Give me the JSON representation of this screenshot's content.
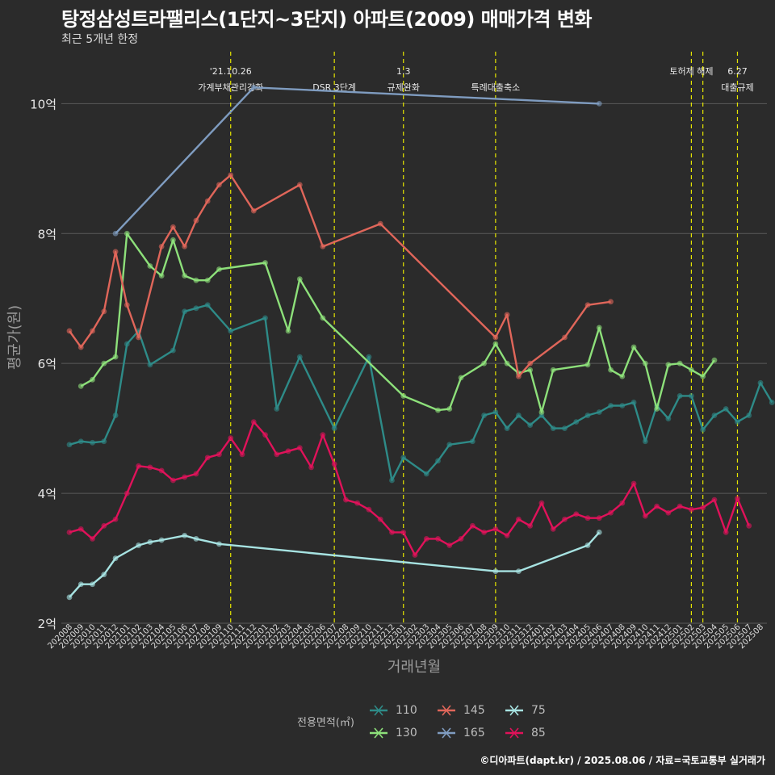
{
  "title": "탕정삼성트라팰리스(1단지~3단지) 아파트(2009) 매매가격 변화",
  "subtitle": "최근 5개년 한정",
  "caption": "©디아파트(dapt.kr) / 2025.08.06 / 자료=국토교통부 실거래가",
  "chart_data": {
    "type": "line",
    "xlabel": "거래년월",
    "ylabel": "평균가(원)",
    "ylim": [
      2.0,
      10.8
    ],
    "yticks": [
      {
        "v": 2,
        "label": "2억"
      },
      {
        "v": 4,
        "label": "4억"
      },
      {
        "v": 6,
        "label": "6억"
      },
      {
        "v": 8,
        "label": "8억"
      },
      {
        "v": 10,
        "label": "10억"
      }
    ],
    "x": [
      "202008",
      "202009",
      "202010",
      "202011",
      "202012",
      "202101",
      "202102",
      "202103",
      "202104",
      "202105",
      "202106",
      "202107",
      "202108",
      "202109",
      "202110",
      "202111",
      "202112",
      "202201",
      "202202",
      "202203",
      "202204",
      "202205",
      "202206",
      "202207",
      "202208",
      "202209",
      "202210",
      "202211",
      "202212",
      "202301",
      "202302",
      "202303",
      "202304",
      "202305",
      "202306",
      "202307",
      "202308",
      "202309",
      "202310",
      "202311",
      "202312",
      "202401",
      "202402",
      "202403",
      "202404",
      "202405",
      "202406",
      "202407",
      "202408",
      "202409",
      "202410",
      "202411",
      "202412",
      "202501",
      "202502",
      "202503",
      "202504",
      "202505",
      "202506",
      "202507",
      "202508"
    ],
    "legend_title": "전용면적(㎡)",
    "grid": true,
    "series": [
      {
        "name": "110",
        "color": "#2e8b88",
        "points": [
          [
            0,
            4.75
          ],
          [
            1,
            4.8
          ],
          [
            2,
            4.78
          ],
          [
            3,
            4.8
          ],
          [
            4,
            5.2
          ],
          [
            5,
            6.3
          ],
          [
            6,
            6.5
          ],
          [
            7,
            5.98
          ],
          [
            9,
            6.2
          ],
          [
            10,
            6.8
          ],
          [
            11,
            6.85
          ],
          [
            12,
            6.9
          ],
          [
            14,
            6.5
          ],
          [
            17,
            6.7
          ],
          [
            18,
            5.3
          ],
          [
            20,
            6.1
          ],
          [
            23,
            5.0
          ],
          [
            26,
            6.1
          ],
          [
            28,
            4.2
          ],
          [
            29,
            4.55
          ],
          [
            31,
            4.3
          ],
          [
            32,
            4.5
          ],
          [
            33,
            4.75
          ],
          [
            35,
            4.8
          ],
          [
            36,
            5.2
          ],
          [
            37,
            5.25
          ],
          [
            38,
            5.0
          ],
          [
            39,
            5.2
          ],
          [
            40,
            5.05
          ],
          [
            41,
            5.2
          ],
          [
            42,
            5.0
          ],
          [
            43,
            5.0
          ],
          [
            44,
            5.1
          ],
          [
            45,
            5.2
          ],
          [
            46,
            5.25
          ],
          [
            47,
            5.35
          ],
          [
            48,
            5.35
          ],
          [
            49,
            5.4
          ],
          [
            50,
            4.8
          ],
          [
            51,
            5.35
          ],
          [
            52,
            5.15
          ],
          [
            53,
            5.5
          ],
          [
            54,
            5.5
          ],
          [
            55,
            4.98
          ],
          [
            56,
            5.2
          ],
          [
            57,
            5.3
          ],
          [
            58,
            5.1
          ],
          [
            59,
            5.2
          ],
          [
            60,
            5.7
          ],
          [
            61,
            5.4
          ]
        ]
      },
      {
        "name": "130",
        "color": "#8de07a",
        "points": [
          [
            1,
            5.65
          ],
          [
            2,
            5.75
          ],
          [
            3,
            6.0
          ],
          [
            4,
            6.1
          ],
          [
            5,
            8.0
          ],
          [
            7,
            7.5
          ],
          [
            8,
            7.35
          ],
          [
            9,
            7.9
          ],
          [
            10,
            7.35
          ],
          [
            11,
            7.28
          ],
          [
            12,
            7.28
          ],
          [
            13,
            7.45
          ],
          [
            17,
            7.55
          ],
          [
            19,
            6.5
          ],
          [
            20,
            7.3
          ],
          [
            22,
            6.7
          ],
          [
            29,
            5.5
          ],
          [
            32,
            5.28
          ],
          [
            33,
            5.3
          ],
          [
            34,
            5.78
          ],
          [
            36,
            6.0
          ],
          [
            37,
            6.3
          ],
          [
            38,
            6.0
          ],
          [
            39,
            5.85
          ],
          [
            40,
            5.9
          ],
          [
            41,
            5.25
          ],
          [
            42,
            5.9
          ],
          [
            45,
            5.98
          ],
          [
            46,
            6.55
          ],
          [
            47,
            5.9
          ],
          [
            48,
            5.8
          ],
          [
            49,
            6.25
          ],
          [
            50,
            6.0
          ],
          [
            51,
            5.3
          ],
          [
            52,
            5.98
          ],
          [
            53,
            6.0
          ],
          [
            54,
            5.9
          ],
          [
            55,
            5.8
          ],
          [
            56,
            6.05
          ]
        ]
      },
      {
        "name": "145",
        "color": "#e0665a",
        "points": [
          [
            0,
            6.5
          ],
          [
            1,
            6.25
          ],
          [
            2,
            6.5
          ],
          [
            3,
            6.8
          ],
          [
            4,
            7.72
          ],
          [
            5,
            6.9
          ],
          [
            6,
            6.4
          ],
          [
            8,
            7.8
          ],
          [
            9,
            8.1
          ],
          [
            10,
            7.8
          ],
          [
            11,
            8.2
          ],
          [
            12,
            8.5
          ],
          [
            13,
            8.75
          ],
          [
            14,
            8.9
          ],
          [
            16,
            8.35
          ],
          [
            20,
            8.75
          ],
          [
            22,
            7.8
          ],
          [
            27,
            8.15
          ],
          [
            37,
            6.4
          ],
          [
            38,
            6.75
          ],
          [
            39,
            5.8
          ],
          [
            40,
            6.0
          ],
          [
            43,
            6.4
          ],
          [
            45,
            6.9
          ],
          [
            47,
            6.95
          ]
        ]
      },
      {
        "name": "165",
        "color": "#7f9cc0",
        "points": [
          [
            4,
            8.0
          ],
          [
            16,
            10.25
          ],
          [
            46,
            10.0
          ]
        ]
      },
      {
        "name": "75",
        "color": "#a7e3e2",
        "points": [
          [
            0,
            2.4
          ],
          [
            1,
            2.6
          ],
          [
            2,
            2.6
          ],
          [
            3,
            2.75
          ],
          [
            4,
            3.0
          ],
          [
            6,
            3.2
          ],
          [
            7,
            3.25
          ],
          [
            8,
            3.28
          ],
          [
            10,
            3.35
          ],
          [
            11,
            3.3
          ],
          [
            13,
            3.22
          ],
          [
            37,
            2.8
          ],
          [
            39,
            2.8
          ],
          [
            45,
            3.2
          ],
          [
            46,
            3.4
          ]
        ]
      },
      {
        "name": "85",
        "color": "#e0125a",
        "points": [
          [
            0,
            3.4
          ],
          [
            1,
            3.45
          ],
          [
            2,
            3.3
          ],
          [
            3,
            3.5
          ],
          [
            4,
            3.6
          ],
          [
            5,
            4.0
          ],
          [
            6,
            4.42
          ],
          [
            7,
            4.4
          ],
          [
            8,
            4.35
          ],
          [
            9,
            4.2
          ],
          [
            10,
            4.25
          ],
          [
            11,
            4.3
          ],
          [
            12,
            4.55
          ],
          [
            13,
            4.6
          ],
          [
            14,
            4.85
          ],
          [
            15,
            4.6
          ],
          [
            16,
            5.1
          ],
          [
            17,
            4.9
          ],
          [
            18,
            4.6
          ],
          [
            19,
            4.65
          ],
          [
            20,
            4.7
          ],
          [
            21,
            4.4
          ],
          [
            22,
            4.9
          ],
          [
            23,
            4.45
          ],
          [
            24,
            3.9
          ],
          [
            25,
            3.85
          ],
          [
            26,
            3.75
          ],
          [
            27,
            3.6
          ],
          [
            28,
            3.4
          ],
          [
            29,
            3.4
          ],
          [
            30,
            3.05
          ],
          [
            31,
            3.3
          ],
          [
            32,
            3.3
          ],
          [
            33,
            3.2
          ],
          [
            34,
            3.3
          ],
          [
            35,
            3.5
          ],
          [
            36,
            3.4
          ],
          [
            37,
            3.45
          ],
          [
            38,
            3.35
          ],
          [
            39,
            3.6
          ],
          [
            40,
            3.5
          ],
          [
            41,
            3.85
          ],
          [
            42,
            3.45
          ],
          [
            43,
            3.6
          ],
          [
            44,
            3.68
          ],
          [
            45,
            3.62
          ],
          [
            46,
            3.62
          ],
          [
            47,
            3.7
          ],
          [
            48,
            3.85
          ],
          [
            49,
            4.15
          ],
          [
            50,
            3.65
          ],
          [
            51,
            3.8
          ],
          [
            52,
            3.7
          ],
          [
            53,
            3.8
          ],
          [
            54,
            3.75
          ],
          [
            55,
            3.78
          ],
          [
            56,
            3.9
          ],
          [
            57,
            3.4
          ],
          [
            58,
            3.92
          ],
          [
            59,
            3.5
          ]
        ]
      }
    ],
    "events": [
      {
        "x": 14,
        "label1": "'21.10.26",
        "label2": "가계부채관리강화"
      },
      {
        "x": 23,
        "label1": "",
        "label2": "DSR 3단계"
      },
      {
        "x": 29,
        "label1": "1.3",
        "label2": "규제완화"
      },
      {
        "x": 37,
        "label1": "",
        "label2": "특례대출축소"
      },
      {
        "x": 54,
        "label1": "토허제 해제",
        "label2": ""
      },
      {
        "x": 55,
        "label1": "",
        "label2": ""
      },
      {
        "x": 58,
        "label1": "6.27",
        "label2": "대출규제"
      }
    ]
  },
  "legend": {
    "items": [
      {
        "name": "110",
        "color": "#2e8b88"
      },
      {
        "name": "130",
        "color": "#8de07a"
      },
      {
        "name": "145",
        "color": "#e0665a"
      },
      {
        "name": "165",
        "color": "#7f9cc0"
      },
      {
        "name": "75",
        "color": "#a7e3e2"
      },
      {
        "name": "85",
        "color": "#e0125a"
      }
    ]
  }
}
